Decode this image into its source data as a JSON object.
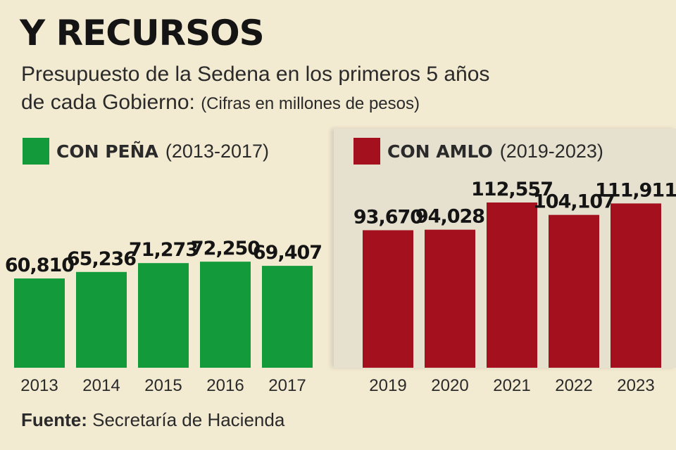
{
  "header": {
    "title": "Y RECURSOS",
    "subtitle_line1": "Presupuesto de la Sedena en los primeros 5 años",
    "subtitle_line2": "de cada Gobierno:",
    "subtitle_note": "(Cifras en millones de pesos)"
  },
  "legend": {
    "pena_bold": "CON PEÑA",
    "pena_range": "(2013-2017)",
    "pena_color": "#139a3a",
    "amlo_bold": "CON AMLO",
    "amlo_range": "(2019-2023)",
    "amlo_color": "#a4101e"
  },
  "source": {
    "label": "Fuente:",
    "text": "Secretaría de Hacienda"
  },
  "chart_data": {
    "type": "bar",
    "title": "Presupuesto de la Sedena en los primeros 5 años de cada Gobierno",
    "unit": "(Cifras en millones de pesos)",
    "ylim": [
      0,
      120000
    ],
    "grid": false,
    "legend_position": "top",
    "series": [
      {
        "name": "CON PEÑA (2013-2017)",
        "color": "#139a3a",
        "categories": [
          "2013",
          "2014",
          "2015",
          "2016",
          "2017"
        ],
        "values": [
          60810,
          65236,
          71273,
          72250,
          69407
        ],
        "labels": [
          "60,810",
          "65,236",
          "71,273",
          "72,250",
          "69,407"
        ]
      },
      {
        "name": "CON AMLO (2019-2023)",
        "color": "#a4101e",
        "categories": [
          "2019",
          "2020",
          "2021",
          "2022",
          "2023"
        ],
        "values": [
          93670,
          94028,
          112557,
          104107,
          111911
        ],
        "labels": [
          "93,670",
          "94,028",
          "112,557",
          "104,107",
          "111,911"
        ]
      }
    ]
  }
}
